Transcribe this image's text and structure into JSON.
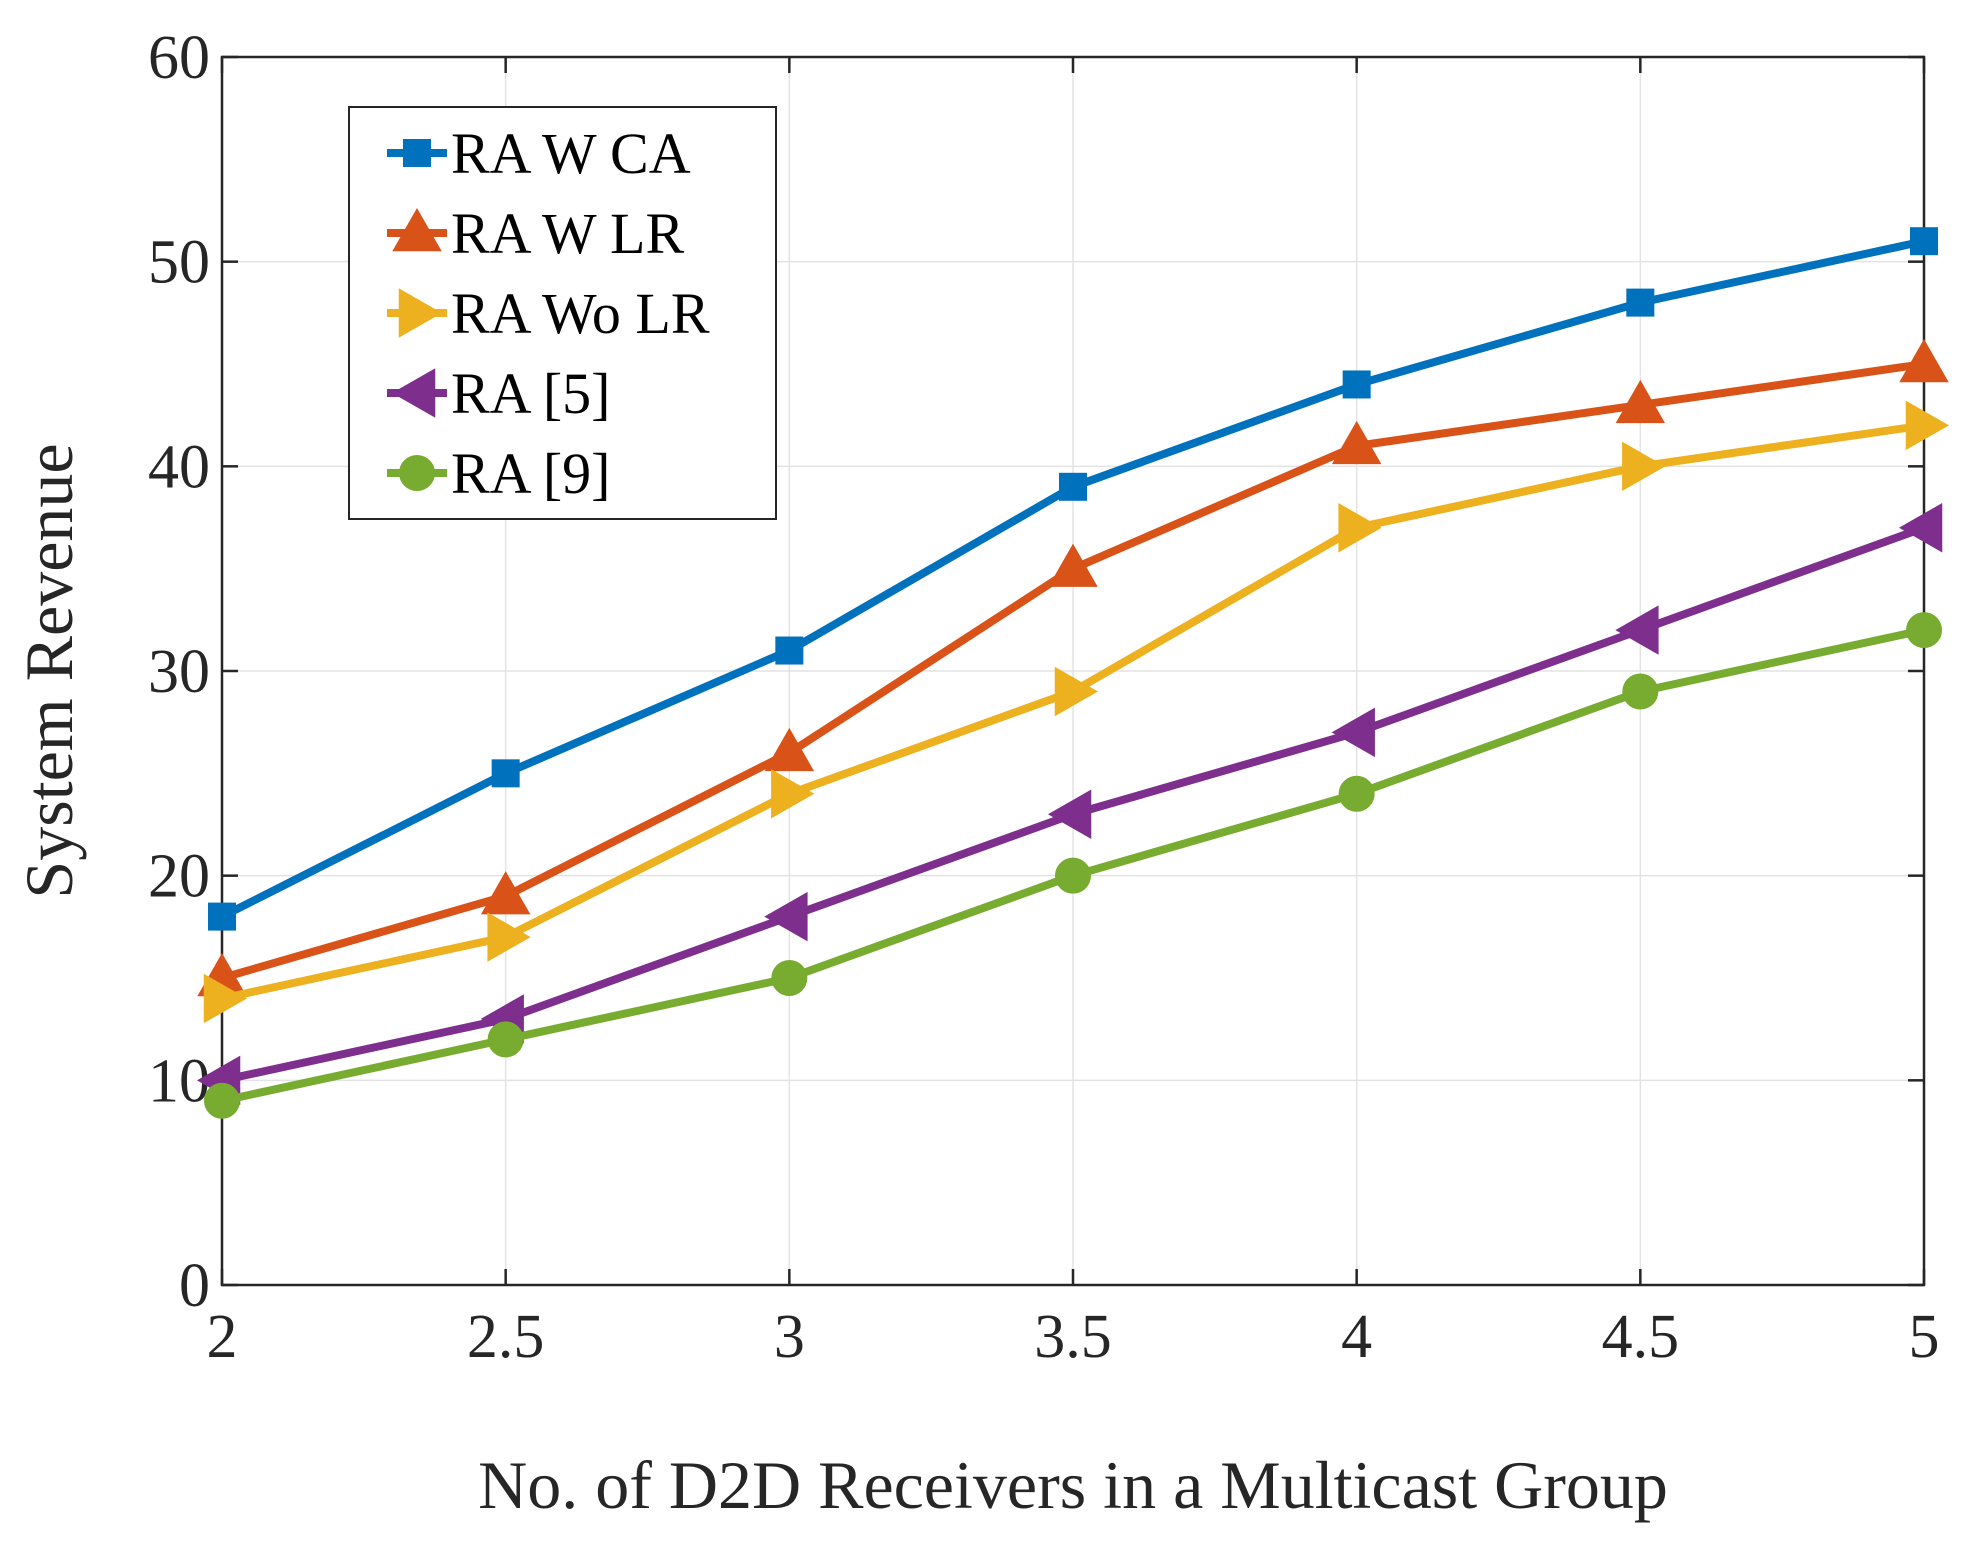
{
  "chart_data": {
    "type": "line",
    "title": "",
    "xlabel": "No. of D2D Receivers in a Multicast Group",
    "ylabel": "System Revenue",
    "x": [
      2,
      2.5,
      3,
      3.5,
      4,
      4.5,
      5
    ],
    "xlim": [
      2,
      5
    ],
    "ylim": [
      0,
      60
    ],
    "xticks": [
      2,
      2.5,
      3,
      3.5,
      4,
      4.5,
      5
    ],
    "xtick_labels": [
      "2",
      "2.5",
      "3",
      "3.5",
      "4",
      "4.5",
      "5"
    ],
    "yticks": [
      0,
      10,
      20,
      30,
      40,
      50,
      60
    ],
    "ytick_labels": [
      "0",
      "10",
      "20",
      "30",
      "40",
      "50",
      "60"
    ],
    "grid": true,
    "legend_position": "top-left",
    "series": [
      {
        "name": "RA W CA",
        "marker": "square",
        "color": "#0072BD",
        "values": [
          18,
          25,
          31,
          39,
          44,
          48,
          51
        ]
      },
      {
        "name": "RA W LR",
        "marker": "triangle-up",
        "color": "#D95319",
        "values": [
          15,
          19,
          26,
          35,
          41,
          43,
          45
        ]
      },
      {
        "name": "RA Wo LR",
        "marker": "triangle-right",
        "color": "#EDB120",
        "values": [
          14,
          17,
          24,
          29,
          37,
          40,
          42
        ]
      },
      {
        "name": "RA [5]",
        "marker": "triangle-left",
        "color": "#7E2F8E",
        "values": [
          10,
          13,
          18,
          23,
          27,
          32,
          37
        ]
      },
      {
        "name": "RA [9]",
        "marker": "circle",
        "color": "#77AC30",
        "values": [
          9,
          12,
          15,
          20,
          24,
          29,
          32
        ]
      }
    ]
  }
}
